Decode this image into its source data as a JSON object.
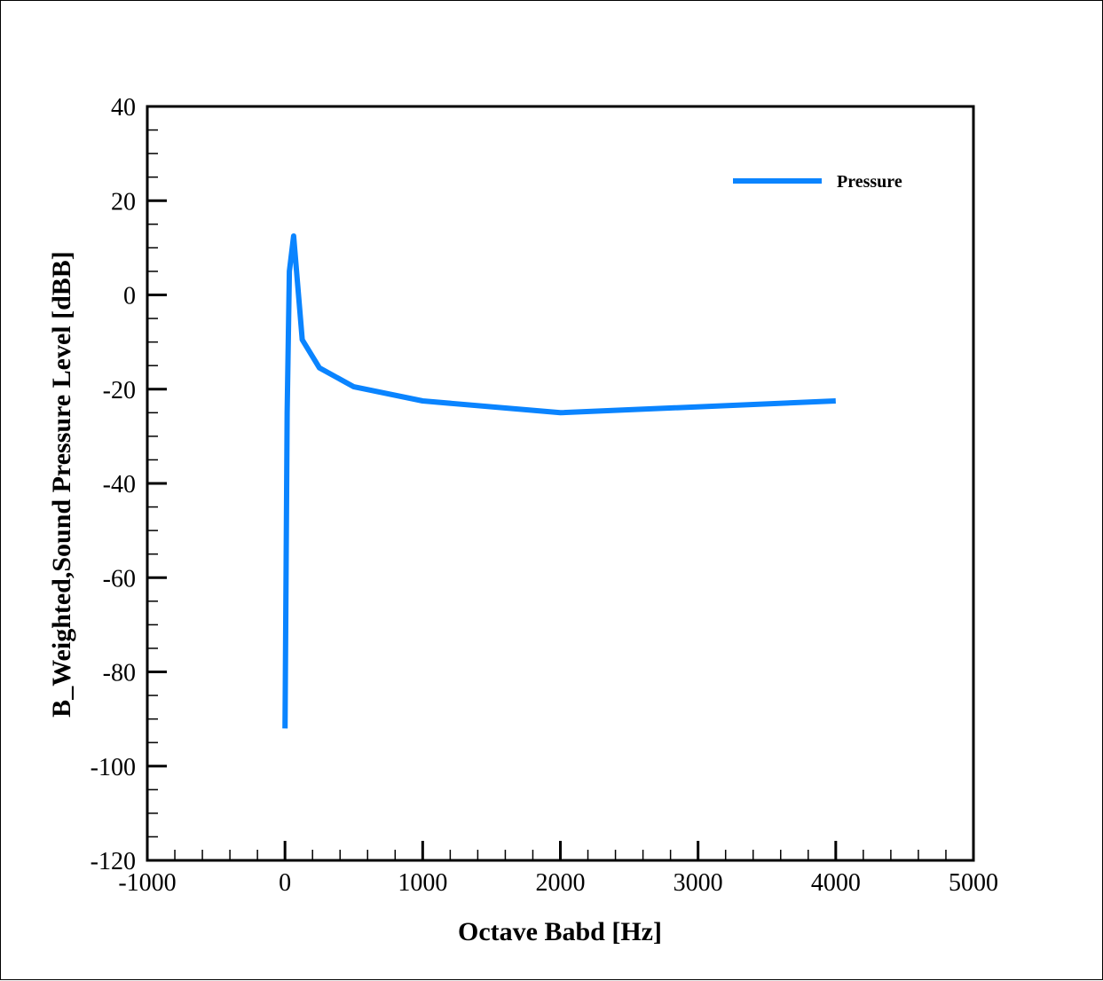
{
  "chart_data": {
    "type": "line",
    "title": "",
    "xlabel": "Octave Babd [Hz]",
    "ylabel": "B_Weighted,Sound Pressure Level [dBB]",
    "xlim": [
      -1000,
      5000
    ],
    "ylim": [
      -120,
      40
    ],
    "xticks": [
      -1000,
      0,
      1000,
      2000,
      3000,
      4000,
      5000
    ],
    "yticks": [
      -120,
      -100,
      -80,
      -60,
      -40,
      -20,
      0,
      20,
      40
    ],
    "xtick_labels": [
      "-1000",
      "0",
      "1000",
      "2000",
      "3000",
      "4000",
      "5000"
    ],
    "ytick_labels": [
      "-120",
      "-100",
      "-80",
      "-60",
      "-40",
      "-20",
      "0",
      "20",
      "40"
    ],
    "x_minor_step": 200,
    "y_minor_step": 5,
    "grid": false,
    "legend_position": "top-right",
    "series": [
      {
        "name": "Pressure",
        "color": "#0A84FF",
        "x": [
          0,
          16,
          31.5,
          63,
          125,
          250,
          500,
          1000,
          2000,
          4000
        ],
        "y": [
          -92,
          -25,
          5,
          12.5,
          -9.5,
          -15.5,
          -19.5,
          -22.5,
          -25,
          -22.5
        ]
      }
    ]
  }
}
